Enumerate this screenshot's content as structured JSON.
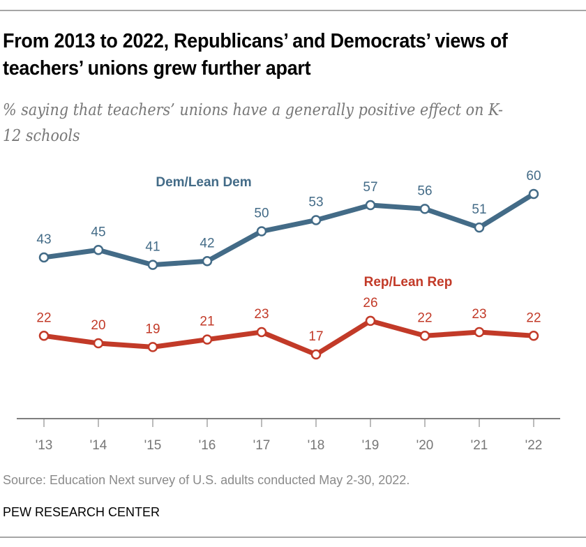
{
  "title": "From 2013 to 2022, Republicans’ and Democrats’ views of teachers’ unions grew further apart",
  "subtitle": "% saying that teachers’ unions have a generally positive effect on K-12 schools",
  "source": "Source: Education Next survey of U.S. adults conducted May 2-30, 2022.",
  "brand": "PEW RESEARCH CENTER",
  "chart_data": {
    "type": "line",
    "categories": [
      "'13",
      "'14",
      "'15",
      "'16",
      "'17",
      "'18",
      "'19",
      "'20",
      "'21",
      "'22"
    ],
    "ylim": [
      0,
      100
    ],
    "grid": false,
    "series": [
      {
        "name": "Dem/Lean Dem",
        "color": "#436b87",
        "values": [
          43,
          45,
          41,
          42,
          50,
          53,
          57,
          56,
          51,
          60
        ]
      },
      {
        "name": "Rep/Lean Rep",
        "color": "#c23a28",
        "values": [
          22,
          20,
          19,
          21,
          23,
          17,
          26,
          22,
          23,
          22
        ]
      }
    ]
  }
}
